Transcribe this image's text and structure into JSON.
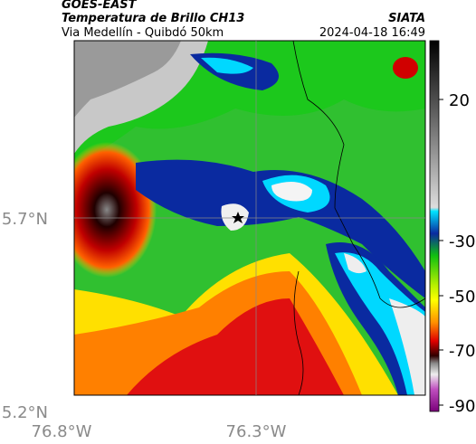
{
  "header": {
    "source": "GOES-EAST",
    "title": "Temperatura de Brillo CH13",
    "subtitle": "Via Medellín - Quibdó 50km",
    "org": "SIATA",
    "datetime": "2024-04-18 16:49"
  },
  "axes": {
    "lat_labels": [
      "5.7°N",
      "5.2°N"
    ],
    "lon_labels": [
      "76.8°W",
      "76.3°W"
    ]
  },
  "colorbar": {
    "ticks": [
      20,
      -30,
      -50,
      -70,
      -90
    ]
  }
}
